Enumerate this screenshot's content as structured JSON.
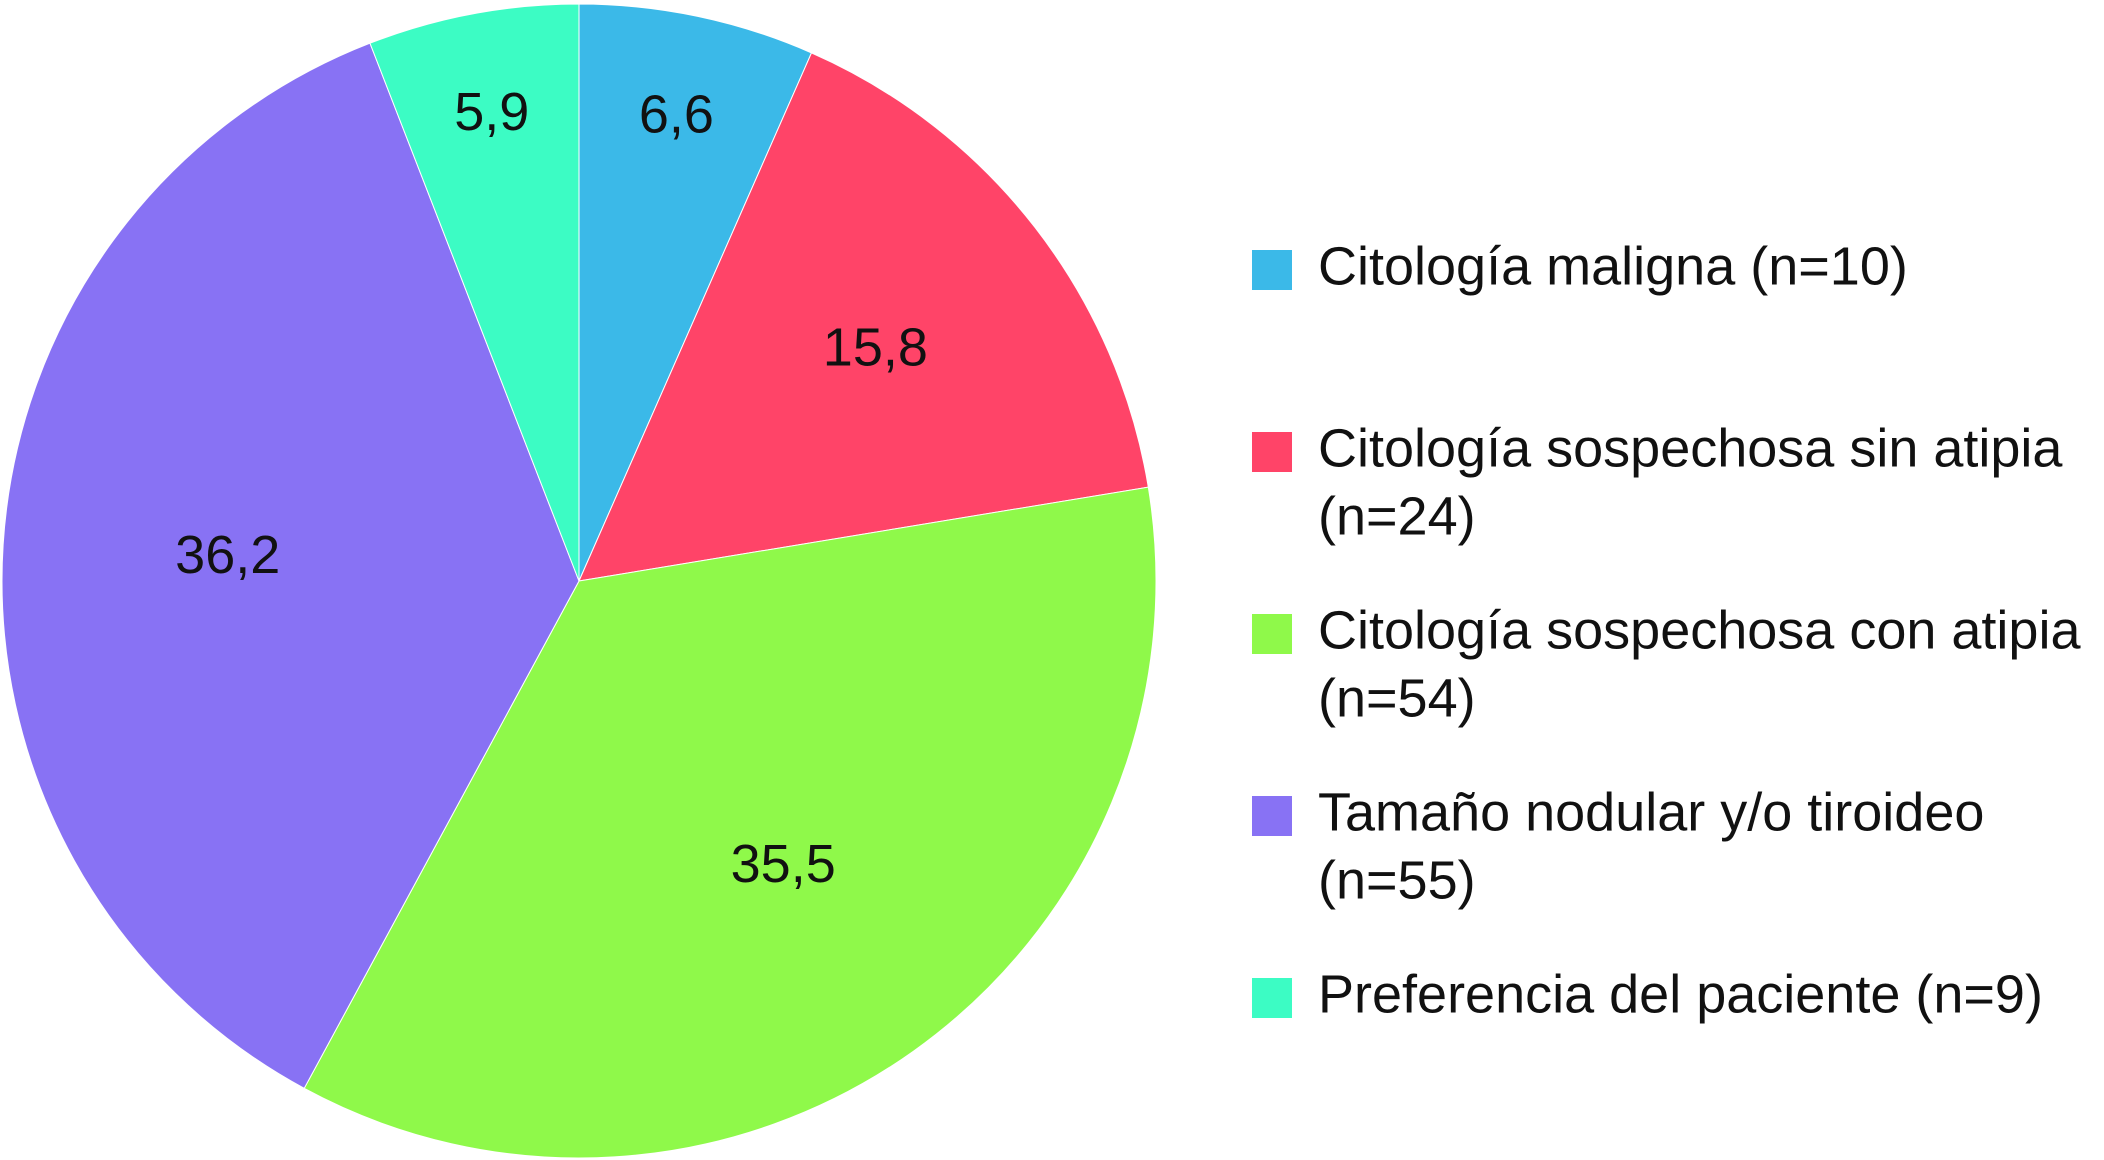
{
  "chart_data": {
    "type": "pie",
    "title": "",
    "start_angle_deg": 0,
    "direction": "clockwise",
    "legend_position": "right",
    "slices": [
      {
        "label": "6,6",
        "value": 6.6,
        "color": "#3bb9e8",
        "legend": [
          "Citología maligna (n=10)"
        ]
      },
      {
        "label": "15,8",
        "value": 15.8,
        "color": "#ff4468",
        "legend": [
          "Citología sospechosa sin atipia",
          "(n=24)"
        ]
      },
      {
        "label": "35,5",
        "value": 35.5,
        "color": "#8ff94a",
        "legend": [
          "Citología sospechosa con atipia",
          "(n=54)"
        ]
      },
      {
        "label": "36,2",
        "value": 36.2,
        "color": "#8872f4",
        "legend": [
          "Tamaño nodular y/o tiroideo",
          "(n=55)"
        ]
      },
      {
        "label": "5,9",
        "value": 5.9,
        "color": "#3cfcc4",
        "legend": [
          "Preferencia del paciente (n=9)"
        ]
      }
    ]
  }
}
